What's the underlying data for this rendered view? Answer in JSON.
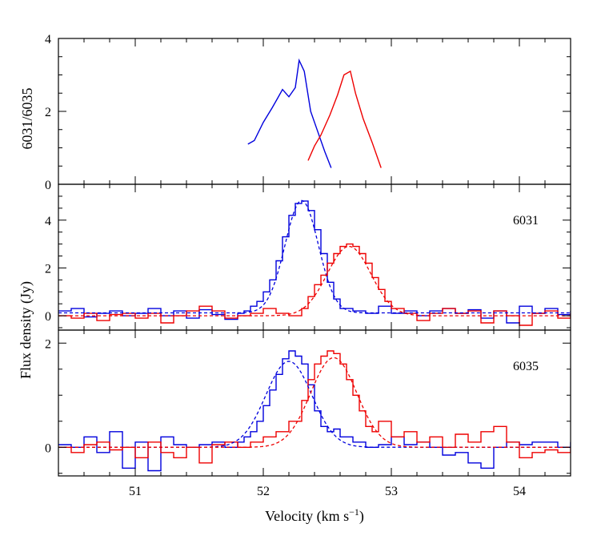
{
  "chart_data": [
    {
      "panel": "ratio",
      "type": "line",
      "ylabel": "6031/6035",
      "ylim": [
        0,
        4
      ],
      "yticks": [
        0,
        2,
        4
      ],
      "xlim": [
        50.4,
        54.4
      ],
      "series": [
        {
          "color": "#0000dd",
          "style": "solid",
          "x": [
            51.88,
            51.93,
            52.0,
            52.07,
            52.11,
            52.15,
            52.2,
            52.25,
            52.28,
            52.32,
            52.37,
            52.42,
            52.48,
            52.53
          ],
          "y": [
            1.1,
            1.2,
            1.7,
            2.1,
            2.35,
            2.6,
            2.4,
            2.65,
            3.4,
            3.1,
            2.0,
            1.5,
            0.9,
            0.45
          ]
        },
        {
          "color": "#ee0000",
          "style": "solid",
          "x": [
            52.35,
            52.4,
            52.45,
            52.52,
            52.58,
            52.63,
            52.68,
            52.72,
            52.78,
            52.85,
            52.92
          ],
          "y": [
            0.65,
            1.05,
            1.35,
            1.9,
            2.45,
            3.0,
            3.1,
            2.5,
            1.8,
            1.15,
            0.45
          ]
        }
      ]
    },
    {
      "panel": "6031",
      "type": "line",
      "label": "6031",
      "ylim": [
        -0.6,
        5.5
      ],
      "yticks": [
        0,
        2,
        4
      ],
      "xlim": [
        50.4,
        54.4
      ],
      "series": [
        {
          "color": "#0000dd",
          "style": "step",
          "x": [
            50.4,
            50.5,
            50.6,
            50.7,
            50.8,
            50.9,
            51.0,
            51.1,
            51.2,
            51.3,
            51.4,
            51.5,
            51.6,
            51.7,
            51.8,
            51.85,
            51.9,
            51.95,
            52.0,
            52.05,
            52.1,
            52.15,
            52.2,
            52.25,
            52.3,
            52.35,
            52.4,
            52.45,
            52.5,
            52.55,
            52.6,
            52.7,
            52.8,
            52.9,
            53.0,
            53.1,
            53.2,
            53.3,
            53.4,
            53.5,
            53.6,
            53.7,
            53.8,
            53.9,
            54.0,
            54.1,
            54.2,
            54.3,
            54.4
          ],
          "y": [
            0.2,
            0.3,
            -0.05,
            0.1,
            0.2,
            0.0,
            0.1,
            0.3,
            0.0,
            0.2,
            -0.1,
            0.25,
            0.05,
            -0.15,
            0.1,
            0.2,
            0.4,
            0.6,
            1.0,
            1.5,
            2.3,
            3.3,
            4.2,
            4.7,
            4.8,
            4.4,
            3.6,
            2.6,
            1.4,
            0.7,
            0.3,
            0.2,
            0.1,
            0.4,
            0.1,
            0.2,
            0.0,
            0.2,
            0.3,
            0.1,
            0.25,
            -0.1,
            0.2,
            -0.3,
            0.4,
            0.1,
            0.3,
            0.05,
            0.2
          ]
        },
        {
          "color": "#ee0000",
          "style": "step",
          "x": [
            50.4,
            50.5,
            50.6,
            50.7,
            50.8,
            50.9,
            51.0,
            51.1,
            51.2,
            51.3,
            51.4,
            51.5,
            51.6,
            51.7,
            51.8,
            51.9,
            52.0,
            52.1,
            52.2,
            52.3,
            52.35,
            52.4,
            52.45,
            52.5,
            52.55,
            52.6,
            52.65,
            52.7,
            52.75,
            52.8,
            52.85,
            52.9,
            52.95,
            53.0,
            53.1,
            53.2,
            53.3,
            53.4,
            53.5,
            53.6,
            53.7,
            53.8,
            53.9,
            54.0,
            54.1,
            54.2,
            54.3,
            54.4
          ],
          "y": [
            0.0,
            -0.1,
            0.1,
            -0.2,
            0.05,
            0.1,
            -0.1,
            0.1,
            -0.3,
            0.0,
            0.2,
            0.4,
            0.2,
            -0.1,
            0.0,
            0.1,
            0.3,
            0.1,
            0.0,
            0.3,
            0.8,
            1.3,
            1.7,
            2.2,
            2.6,
            2.9,
            3.0,
            2.9,
            2.6,
            2.2,
            1.6,
            1.1,
            0.6,
            0.3,
            0.1,
            -0.2,
            0.1,
            0.3,
            0.1,
            0.2,
            -0.3,
            0.2,
            0.0,
            -0.4,
            0.1,
            0.2,
            -0.1,
            0.1
          ]
        },
        {
          "color": "#0000dd",
          "style": "dashed-fit",
          "gaussian": {
            "amplitude": 4.7,
            "center": 52.3,
            "sigma": 0.13,
            "offset": 0.12
          }
        },
        {
          "color": "#ee0000",
          "style": "dashed-fit",
          "gaussian": {
            "amplitude": 2.9,
            "center": 52.67,
            "sigma": 0.17,
            "offset": 0.0
          }
        }
      ]
    },
    {
      "panel": "6035",
      "type": "line",
      "label": "6035",
      "ylim": [
        -0.55,
        2.25
      ],
      "yticks": [
        0,
        2
      ],
      "xlim": [
        50.4,
        54.4
      ],
      "series": [
        {
          "color": "#0000dd",
          "style": "step",
          "x": [
            50.4,
            50.5,
            50.6,
            50.7,
            50.8,
            50.9,
            51.0,
            51.1,
            51.2,
            51.3,
            51.4,
            51.5,
            51.6,
            51.7,
            51.8,
            51.85,
            51.9,
            51.95,
            52.0,
            52.05,
            52.1,
            52.15,
            52.2,
            52.25,
            52.3,
            52.35,
            52.4,
            52.45,
            52.5,
            52.55,
            52.6,
            52.7,
            52.8,
            52.9,
            53.0,
            53.1,
            53.2,
            53.3,
            53.4,
            53.5,
            53.6,
            53.7,
            53.8,
            53.9,
            54.0,
            54.1,
            54.2,
            54.3,
            54.4
          ],
          "y": [
            0.05,
            0.0,
            0.2,
            -0.1,
            0.3,
            -0.4,
            0.1,
            -0.45,
            0.2,
            0.05,
            0.0,
            0.05,
            0.1,
            0.0,
            0.1,
            0.2,
            0.3,
            0.5,
            0.8,
            1.1,
            1.4,
            1.7,
            1.85,
            1.75,
            1.6,
            1.2,
            0.7,
            0.4,
            0.3,
            0.35,
            0.2,
            0.1,
            0.0,
            0.05,
            0.2,
            0.05,
            0.1,
            0.0,
            -0.15,
            -0.1,
            -0.3,
            -0.4,
            0.0,
            0.1,
            0.05,
            0.1,
            0.1,
            0.0,
            0.1
          ]
        },
        {
          "color": "#ee0000",
          "style": "step",
          "x": [
            50.4,
            50.5,
            50.6,
            50.7,
            50.8,
            50.9,
            51.0,
            51.1,
            51.2,
            51.3,
            51.4,
            51.5,
            51.6,
            51.7,
            51.8,
            51.9,
            52.0,
            52.1,
            52.2,
            52.3,
            52.35,
            52.4,
            52.45,
            52.5,
            52.55,
            52.6,
            52.65,
            52.7,
            52.75,
            52.8,
            52.85,
            52.9,
            53.0,
            53.1,
            53.2,
            53.3,
            53.4,
            53.5,
            53.6,
            53.7,
            53.8,
            53.9,
            54.0,
            54.1,
            54.2,
            54.3,
            54.4
          ],
          "y": [
            0.0,
            -0.1,
            0.05,
            0.1,
            -0.05,
            0.0,
            -0.2,
            0.1,
            -0.1,
            -0.2,
            0.0,
            -0.3,
            0.05,
            0.1,
            0.0,
            0.1,
            0.2,
            0.3,
            0.5,
            0.9,
            1.3,
            1.6,
            1.75,
            1.85,
            1.8,
            1.6,
            1.3,
            1.0,
            0.7,
            0.4,
            0.3,
            0.5,
            0.2,
            0.3,
            0.1,
            0.2,
            0.0,
            0.25,
            0.1,
            0.3,
            0.4,
            0.1,
            -0.2,
            -0.1,
            -0.05,
            -0.1,
            0.0
          ]
        },
        {
          "color": "#0000dd",
          "style": "dashed-fit",
          "gaussian": {
            "amplitude": 1.65,
            "center": 52.2,
            "sigma": 0.18,
            "offset": 0.0
          }
        },
        {
          "color": "#ee0000",
          "style": "dashed-fit",
          "gaussian": {
            "amplitude": 1.72,
            "center": 52.55,
            "sigma": 0.18,
            "offset": 0.0
          }
        }
      ]
    }
  ],
  "axes": {
    "xlabel_main": "Velocity (km s",
    "xlabel_sup": "−1",
    "xlabel_close": ")",
    "ylabel_shared": "Flux density (Jy)",
    "xticks": [
      51,
      52,
      53,
      54
    ]
  }
}
